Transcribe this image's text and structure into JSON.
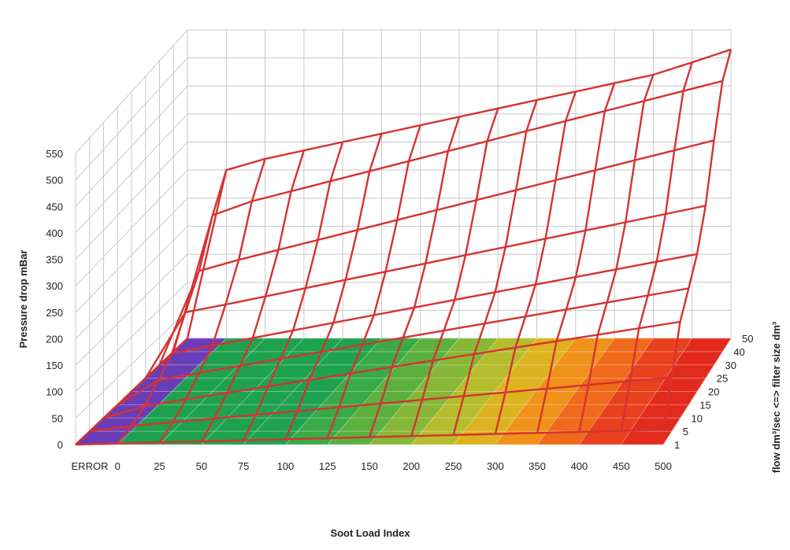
{
  "chart_data": {
    "type": "surface3d",
    "title": "",
    "xlabel": "Soot Load Index",
    "ylabel": "Pressure drop mBar",
    "zlabel": "flow dm³/sec <=> filter size dm³",
    "x_categories": [
      "ERROR",
      "0",
      "25",
      "50",
      "75",
      "100",
      "125",
      "150",
      "200",
      "250",
      "300",
      "350",
      "400",
      "450",
      "500"
    ],
    "z_categories": [
      "1",
      "5",
      "10",
      "15",
      "20",
      "25",
      "30",
      "40",
      "50"
    ],
    "y_ticks": [
      0,
      50,
      100,
      150,
      200,
      250,
      300,
      350,
      400,
      450,
      500,
      550
    ],
    "ylim": [
      0,
      550
    ],
    "grid": true,
    "surface_rows": [
      {
        "z": "1",
        "values": [
          0,
          2,
          4,
          6,
          8,
          10,
          12,
          14,
          16,
          18,
          20,
          22,
          24,
          26,
          28
        ]
      },
      {
        "z": "5",
        "values": [
          0,
          10,
          17,
          24,
          31,
          38,
          45,
          52,
          59,
          66,
          73,
          80,
          87,
          94,
          101
        ]
      },
      {
        "z": "10",
        "values": [
          0,
          22,
          35,
          47,
          59,
          71,
          83,
          95,
          107,
          119,
          131,
          143,
          155,
          167,
          179
        ]
      },
      {
        "z": "15",
        "values": [
          0,
          45,
          59,
          72,
          85,
          98,
          111,
          124,
          137,
          150,
          163,
          176,
          189,
          202,
          215
        ]
      },
      {
        "z": "20",
        "values": [
          0,
          70,
          84,
          98,
          112,
          126,
          140,
          154,
          168,
          182,
          196,
          210,
          224,
          238,
          252
        ]
      },
      {
        "z": "25",
        "values": [
          0,
          120,
          134,
          149,
          164,
          179,
          194,
          209,
          224,
          239,
          254,
          269,
          284,
          299,
          314
        ]
      },
      {
        "z": "30",
        "values": [
          0,
          170,
          190,
          208,
          226,
          244,
          262,
          280,
          298,
          316,
          334,
          352,
          370,
          388,
          406
        ]
      },
      {
        "z": "40",
        "values": [
          0,
          245,
          270,
          288,
          306,
          324,
          342,
          360,
          378,
          396,
          414,
          432,
          450,
          468,
          486
        ]
      },
      {
        "z": "50",
        "values": [
          0,
          300,
          320,
          335,
          350,
          365,
          380,
          395,
          410,
          425,
          440,
          455,
          470,
          492,
          515
        ]
      }
    ],
    "floor_colors": [
      "#6a3db8",
      "#1fa24f",
      "#1fa24f",
      "#1fa24f",
      "#1fa24f",
      "#3aaa46",
      "#5cb03e",
      "#86b736",
      "#b5bd2c",
      "#dcb31f",
      "#f0921a",
      "#ef6a1a",
      "#e9401d",
      "#e22b1e"
    ],
    "wire_color": "#d63232"
  }
}
